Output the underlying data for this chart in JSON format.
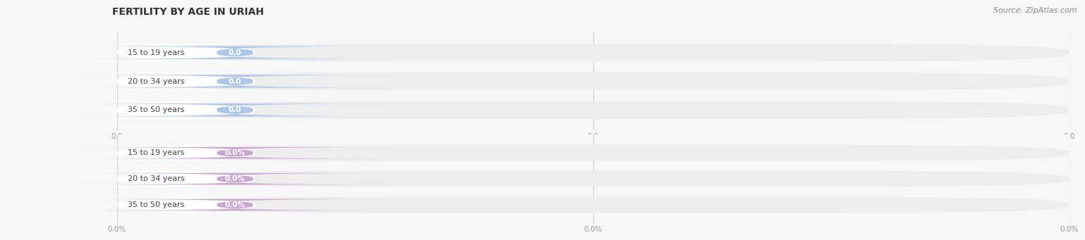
{
  "title": "FERTILITY BY AGE IN URIAH",
  "source": "Source: ZipAtlas.com",
  "top_chart": {
    "categories": [
      "15 to 19 years",
      "20 to 34 years",
      "35 to 50 years"
    ],
    "values": [
      0.0,
      0.0,
      0.0
    ],
    "bar_bg_color": "#ededee",
    "label_bg_color": "#ffffff",
    "badge_color": "#aec6e8",
    "badge_text_color": "#ffffff",
    "value_label": "0.0",
    "x_tick_labels": [
      "0.0",
      "0.0",
      "0.0"
    ]
  },
  "bottom_chart": {
    "categories": [
      "15 to 19 years",
      "20 to 34 years",
      "35 to 50 years"
    ],
    "values": [
      0.0,
      0.0,
      0.0
    ],
    "bar_bg_color": "#ededee",
    "label_bg_color": "#ffffff",
    "badge_color": "#c9a8d0",
    "badge_text_color": "#ffffff",
    "value_label": "0.0%",
    "x_tick_labels": [
      "0.0%",
      "0.0%",
      "0.0%"
    ]
  },
  "bg_color": "#f7f7f7",
  "title_fontsize": 10,
  "label_fontsize": 8,
  "value_fontsize": 7.5,
  "tick_fontsize": 7.5,
  "source_fontsize": 8
}
